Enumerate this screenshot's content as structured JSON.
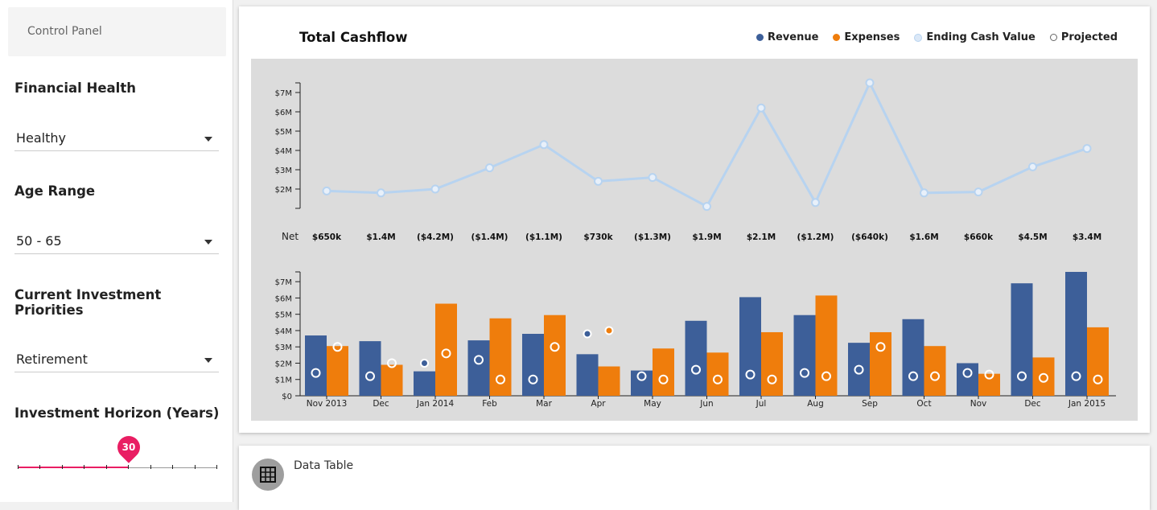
{
  "sidebar": {
    "control_panel": "Control Panel",
    "financial_health": {
      "label": "Financial Health",
      "value": "Healthy"
    },
    "age_range": {
      "label": "Age Range",
      "value": "50 - 65"
    },
    "investment_priorities": {
      "label": "Current Investment Priorities",
      "value": "Retirement"
    },
    "investment_horizon": {
      "label": "Investment Horizon (Years)",
      "value": "30",
      "fraction": 0.556
    }
  },
  "colors": {
    "revenue": "#3d5f99",
    "expenses": "#ef7d0c",
    "ending_cash": "#b7d3f0",
    "projected": "#ffffff",
    "slider": "#e91e63",
    "plot_bg": "#dcdcdc"
  },
  "chart_data": {
    "type": "bar",
    "title": "Total Cashflow",
    "legend": [
      "Revenue",
      "Expenses",
      "Ending Cash Value",
      "Projected"
    ],
    "legend_position": "top-right",
    "categories": [
      "Nov 2013",
      "Dec",
      "Jan 2014",
      "Feb",
      "Mar",
      "Apr",
      "May",
      "Jun",
      "Jul",
      "Aug",
      "Sep",
      "Oct",
      "Nov",
      "Dec",
      "Jan 2015"
    ],
    "net_label": "Net",
    "net": [
      "$650k",
      "$1.4M",
      "($4.2M)",
      "($1.4M)",
      "($1.1M)",
      "$730k",
      "($1.3M)",
      "$1.9M",
      "$2.1M",
      "($1.2M)",
      "($640k)",
      "$1.6M",
      "$660k",
      "$4.5M",
      "$3.4M"
    ],
    "line": {
      "name": "Ending Cash Value",
      "values": [
        1.9,
        1.8,
        2.0,
        3.1,
        4.3,
        2.4,
        2.6,
        1.1,
        6.2,
        1.3,
        7.5,
        1.8,
        1.85,
        3.15,
        4.1
      ],
      "yticks": [
        "$2M",
        "$3M",
        "$4M",
        "$5M",
        "$6M",
        "$7M"
      ],
      "ylim": [
        1,
        7.5
      ]
    },
    "bars": {
      "yticks": [
        "$0",
        "$1M",
        "$2M",
        "$3M",
        "$4M",
        "$5M",
        "$6M",
        "$7M"
      ],
      "ylim": [
        0,
        7.6
      ],
      "series": [
        {
          "name": "Revenue",
          "values": [
            3.7,
            3.35,
            1.5,
            3.4,
            3.8,
            2.55,
            1.55,
            4.6,
            6.05,
            4.95,
            3.25,
            4.7,
            2.0,
            6.9,
            7.6
          ],
          "projected": [
            1.4,
            1.2,
            2.0,
            2.2,
            1.0,
            3.8,
            1.2,
            1.6,
            1.3,
            1.4,
            1.6,
            1.2,
            1.4,
            1.2,
            1.2
          ],
          "projected_filled": [
            false,
            false,
            true,
            false,
            false,
            true,
            false,
            false,
            false,
            false,
            false,
            false,
            false,
            false,
            false
          ]
        },
        {
          "name": "Expenses",
          "values": [
            3.05,
            1.9,
            5.65,
            4.75,
            4.95,
            1.8,
            2.9,
            2.65,
            3.9,
            6.15,
            3.9,
            3.05,
            1.35,
            2.35,
            4.2
          ],
          "projected": [
            3.0,
            2.0,
            2.6,
            1.0,
            3.0,
            4.0,
            1.0,
            1.0,
            1.0,
            1.2,
            3.0,
            1.2,
            1.3,
            1.1,
            1.0
          ],
          "projected_filled": [
            false,
            false,
            false,
            false,
            false,
            true,
            false,
            false,
            false,
            false,
            false,
            false,
            false,
            false,
            false
          ]
        }
      ]
    }
  },
  "data_table": {
    "label": "Data Table",
    "icon": "grid-icon"
  }
}
